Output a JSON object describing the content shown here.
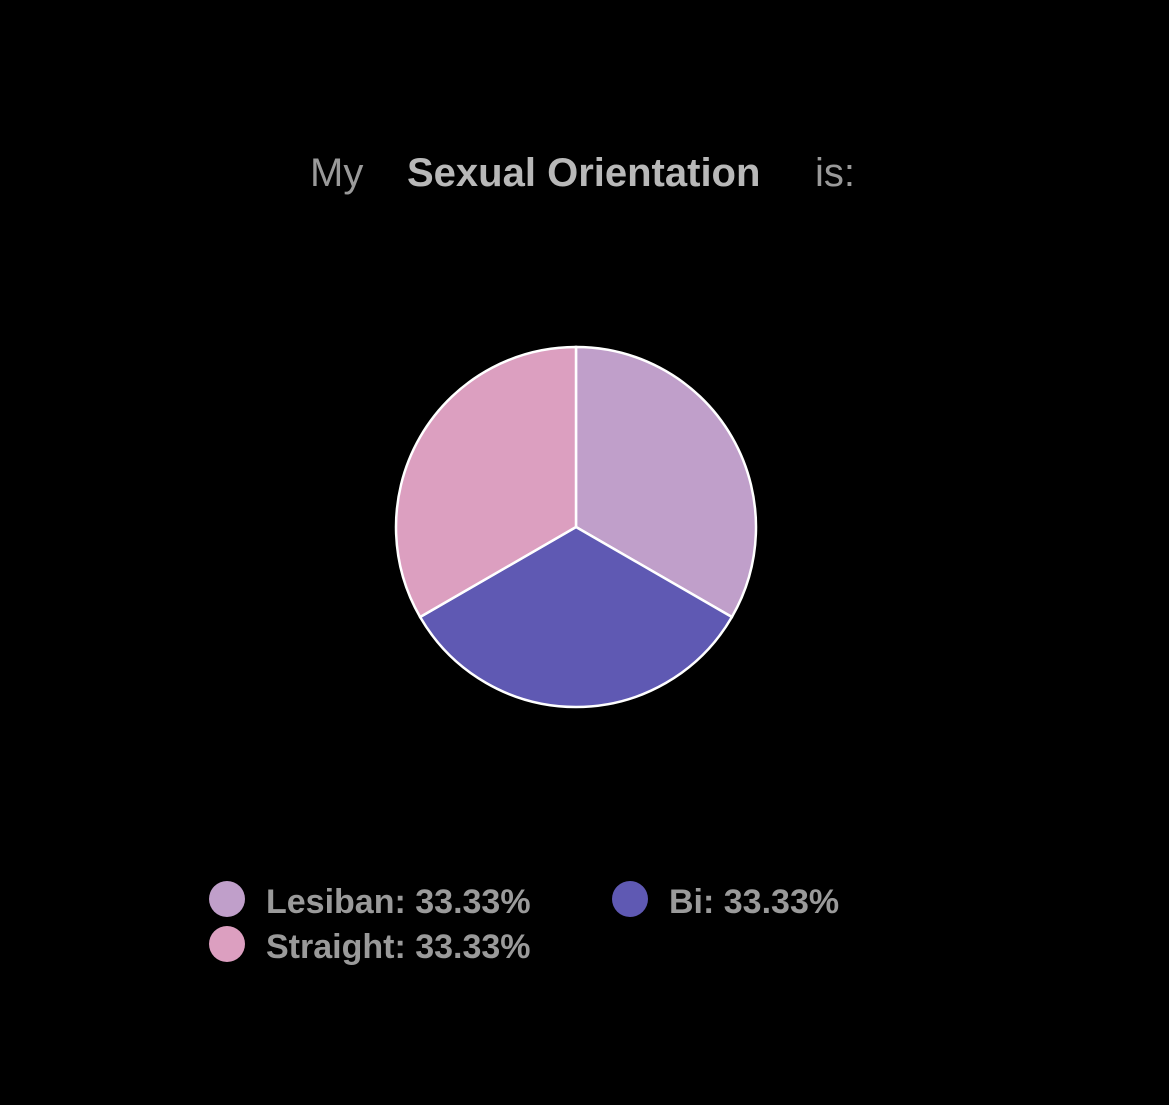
{
  "chart_data": {
    "type": "pie",
    "title": {
      "prefix": "My",
      "subject": "Sexual Orientation",
      "suffix": "is:"
    },
    "values": [
      33.33,
      33.33,
      33.33
    ],
    "value_labels": [
      "Lesiban: 33.33%",
      "Bi: 33.33%",
      "Straight: 33.33%"
    ],
    "colors": [
      "#c09fca",
      "#5f59b3",
      "#dc9fc0"
    ]
  }
}
